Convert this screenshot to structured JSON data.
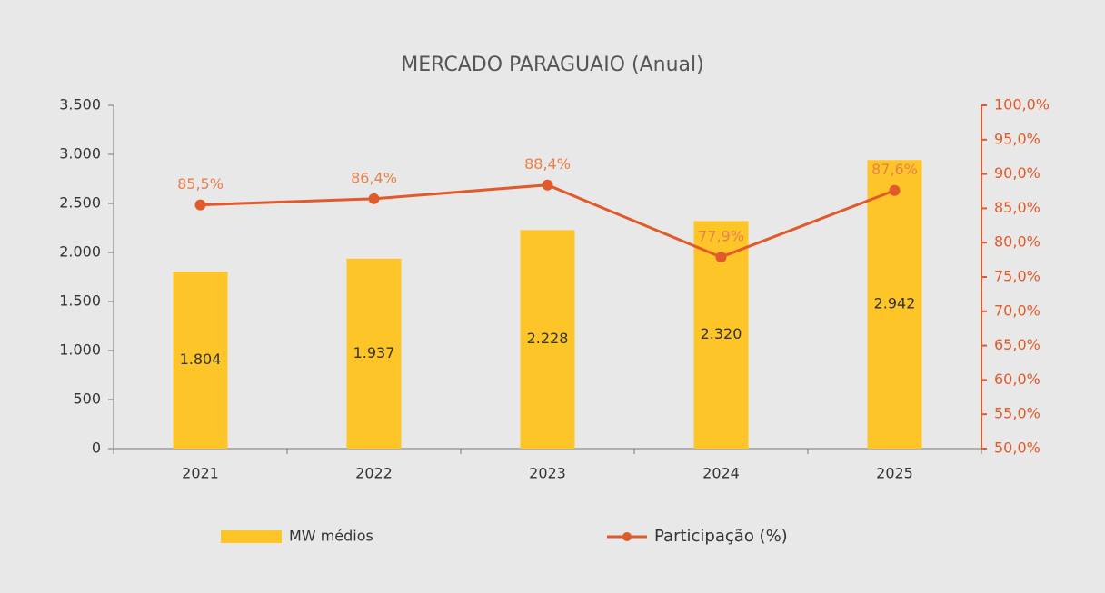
{
  "chart_data": {
    "type": "bar",
    "title": "MERCADO PARAGUAIO (Anual)",
    "categories": [
      "2021",
      "2022",
      "2023",
      "2024",
      "2025"
    ],
    "series": [
      {
        "name": "MW médios",
        "type": "bar",
        "color": "#fdc528",
        "values": [
          1804,
          1937,
          2228,
          2320,
          2942
        ],
        "value_labels": [
          "1.804",
          "1.937",
          "2.228",
          "2.320",
          "2.942"
        ]
      },
      {
        "name": "Participação (%)",
        "type": "line",
        "axis": "y2",
        "color": "#e05a2b",
        "values": [
          85.5,
          86.4,
          88.4,
          77.9,
          87.6
        ],
        "value_labels": [
          "85,5%",
          "86,4%",
          "88,4%",
          "77,9%",
          "87,6%"
        ]
      }
    ],
    "ylim": [
      0,
      3500
    ],
    "yticks": [
      0,
      500,
      {
        "value": 1000,
        "label": "1.000"
      },
      {
        "value": 1500,
        "label": "1.500"
      },
      {
        "value": 2000,
        "label": "2.000"
      },
      {
        "value": 2500,
        "label": "2.500"
      },
      {
        "value": 3000,
        "label": "3.000"
      },
      {
        "value": 3500,
        "label": "3.500"
      }
    ],
    "y2lim": [
      50,
      100
    ],
    "y2ticks": [
      {
        "value": 50,
        "label": "50,0%"
      },
      {
        "value": 55,
        "label": "55,0%"
      },
      {
        "value": 60,
        "label": "60,0%"
      },
      {
        "value": 65,
        "label": "65,0%"
      },
      {
        "value": 70,
        "label": "70,0%"
      },
      {
        "value": 75,
        "label": "75,0%"
      },
      {
        "value": 80,
        "label": "80,0%"
      },
      {
        "value": 85,
        "label": "85,0%"
      },
      {
        "value": 90,
        "label": "90,0%"
      },
      {
        "value": 95,
        "label": "95,0%"
      },
      {
        "value": 100,
        "label": "100,0%"
      }
    ],
    "y2color": "#e05a2b",
    "grid": false
  }
}
